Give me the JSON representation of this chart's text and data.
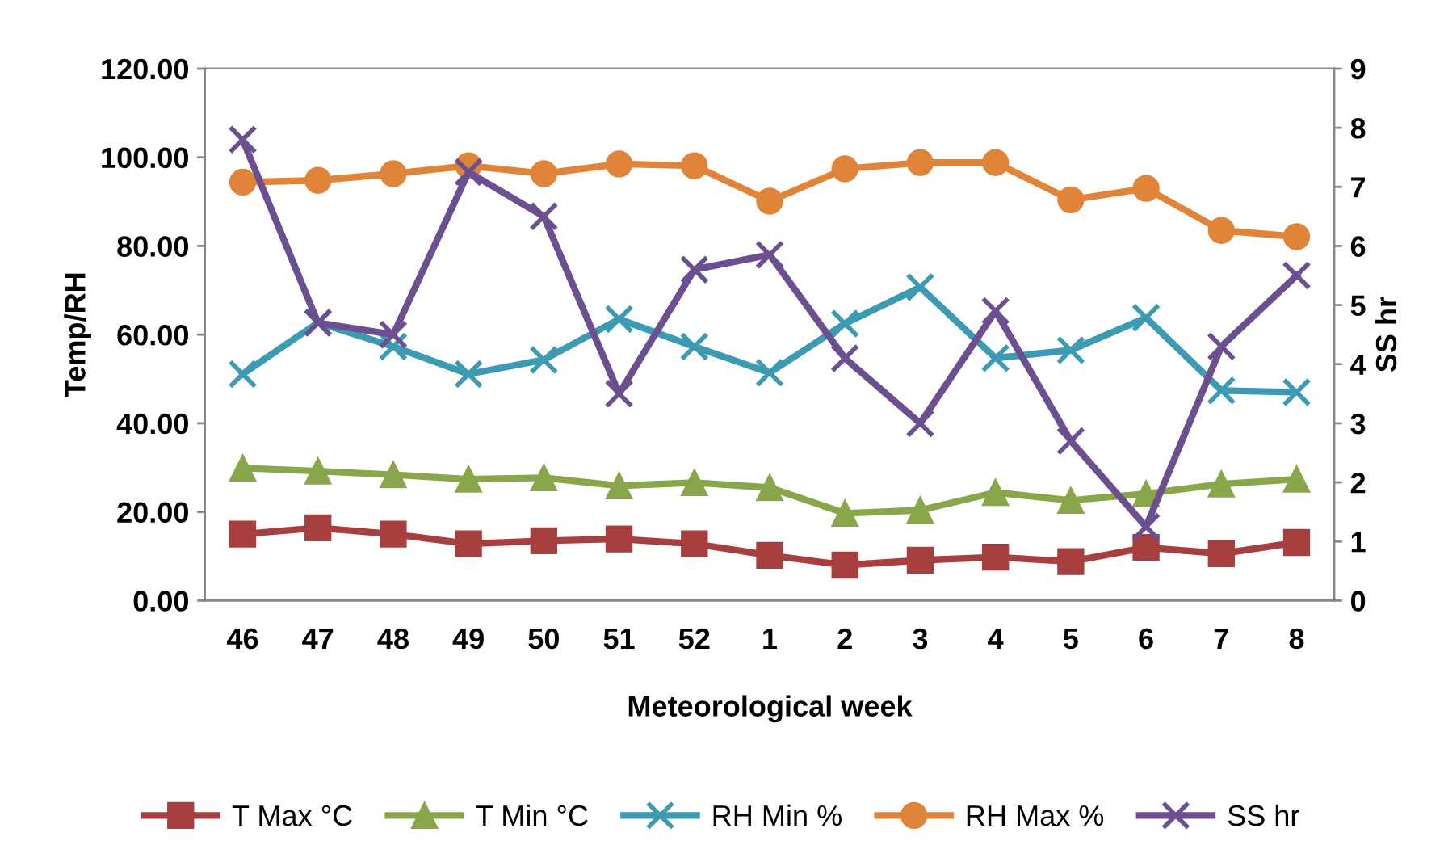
{
  "chart_data": {
    "type": "line",
    "xlabel": "Meteorological week",
    "ylabel": "Temp/RH",
    "y2label": "SS hr",
    "categories": [
      "46",
      "47",
      "48",
      "49",
      "50",
      "51",
      "52",
      "1",
      "2",
      "3",
      "4",
      "5",
      "6",
      "7",
      "8"
    ],
    "series": [
      {
        "name": "T Max °C",
        "color": "#a63f3d",
        "marker": "square",
        "values": [
          15.0,
          16.4,
          15.0,
          12.8,
          13.5,
          13.9,
          12.8,
          10.2,
          8.0,
          9.1,
          9.8,
          8.8,
          12.0,
          10.6,
          13.1
        ]
      },
      {
        "name": "T Min °C",
        "color": "#8aa64a",
        "marker": "triangle",
        "values": [
          29.9,
          29.2,
          28.4,
          27.4,
          27.7,
          25.9,
          26.6,
          25.5,
          19.7,
          20.4,
          24.4,
          22.6,
          24.1,
          26.3,
          27.4
        ]
      },
      {
        "name": "RH Min %",
        "color": "#3c9bb3",
        "marker": "cross",
        "values": [
          51.1,
          62.7,
          57.3,
          51.1,
          54.3,
          63.5,
          57.3,
          51.4,
          62.5,
          70.7,
          54.7,
          56.5,
          63.8,
          47.4,
          47.0
        ]
      },
      {
        "name": "RH Max %",
        "color": "#e0843a",
        "marker": "circle",
        "values": [
          94.4,
          94.8,
          96.3,
          98.1,
          96.3,
          98.5,
          98.1,
          90.1,
          97.4,
          98.8,
          98.8,
          90.4,
          93.0,
          83.5,
          82.1
        ]
      },
      {
        "name": "SS hr",
        "color": "#6b4f90",
        "marker": "cross",
        "axis": "y2",
        "values": [
          7.8,
          4.7,
          4.5,
          7.25,
          6.5,
          3.5,
          5.6,
          5.85,
          4.1,
          3.0,
          4.9,
          2.7,
          1.25,
          4.3,
          5.5
        ]
      }
    ],
    "ylim": [
      0,
      120
    ],
    "yticks": [
      {
        "value": 0,
        "label": "0.00"
      },
      {
        "value": 20,
        "label": "20.00"
      },
      {
        "value": 40,
        "label": "40.00"
      },
      {
        "value": 60,
        "label": "60.00"
      },
      {
        "value": 80,
        "label": "80.00"
      },
      {
        "value": 100,
        "label": "100.00"
      },
      {
        "value": 120,
        "label": "120.00"
      }
    ],
    "y2lim": [
      0,
      9
    ],
    "y2ticks": [
      0,
      1,
      2,
      3,
      4,
      5,
      6,
      7,
      8,
      9
    ],
    "legend": "bottom",
    "grid": false,
    "line_style": "solid"
  }
}
